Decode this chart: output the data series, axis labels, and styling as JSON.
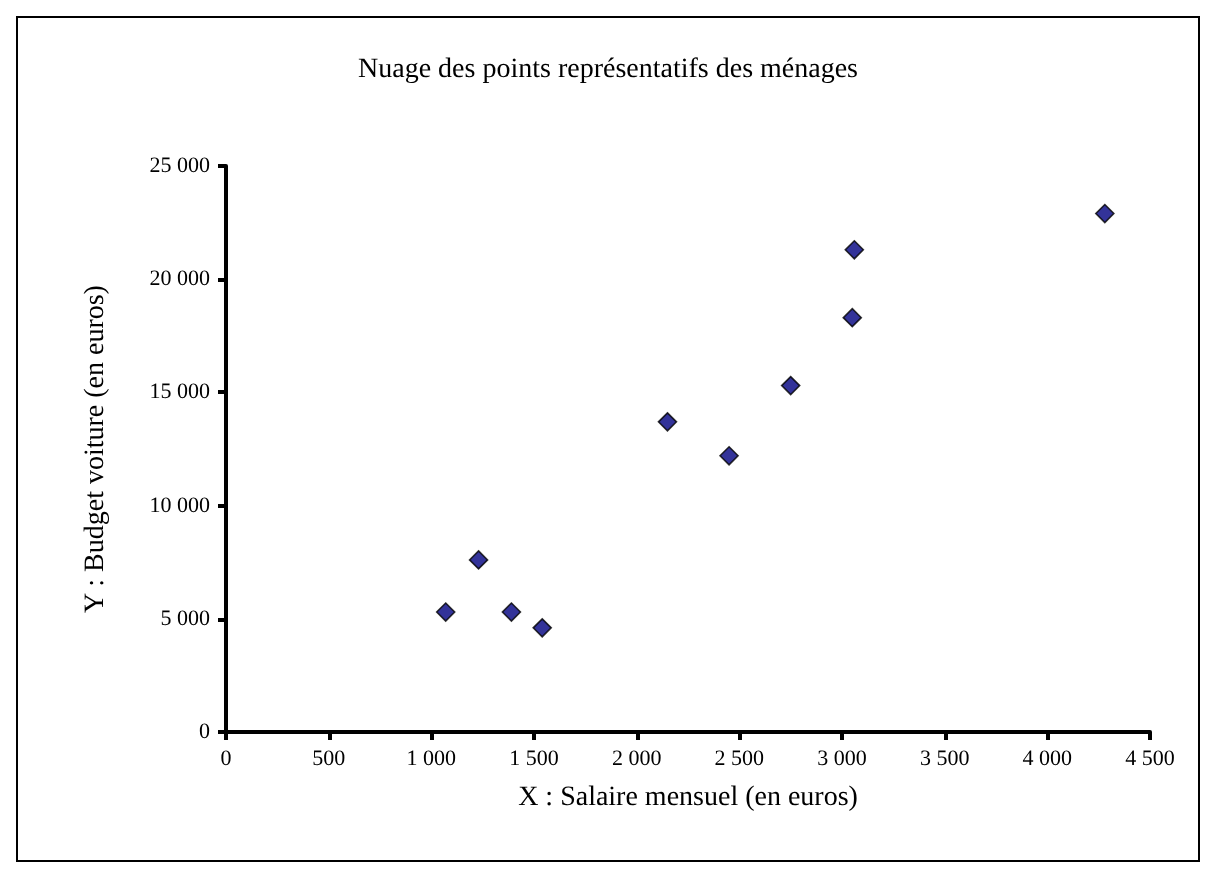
{
  "chart_data": {
    "type": "scatter",
    "title": "Nuage des points représentatifs des ménages",
    "xlabel": "X : Salaire mensuel (en euros)",
    "ylabel": "Y : Budget voiture (en euros)",
    "x": [
      1070,
      1230,
      1390,
      1540,
      2150,
      2450,
      2750,
      3050,
      3060,
      4280
    ],
    "values": [
      5300,
      7600,
      5300,
      4600,
      13700,
      12200,
      15300,
      18300,
      21300,
      22900
    ],
    "color": "#000080",
    "marker": "diamond",
    "grid": false,
    "xlim": [
      0,
      4500
    ],
    "xticks": [
      0,
      500,
      {
        "value": 1000,
        "label": "1 000"
      },
      {
        "value": 1500,
        "label": "1 500"
      },
      {
        "value": 2000,
        "label": "2 000"
      },
      {
        "value": 2500,
        "label": "2 500"
      },
      {
        "value": 3000,
        "label": "3 000"
      },
      {
        "value": 3500,
        "label": "3 500"
      },
      {
        "value": 4000,
        "label": "4 000"
      },
      {
        "value": 4500,
        "label": "4 500"
      }
    ],
    "ylim": [
      0,
      25000
    ],
    "yticks": [
      0,
      {
        "value": 5000,
        "label": "5 000"
      },
      {
        "value": 10000,
        "label": "10 000"
      },
      {
        "value": 15000,
        "label": "15 000"
      },
      {
        "value": 20000,
        "label": "20 000"
      },
      {
        "value": 25000,
        "label": "25 000"
      }
    ]
  }
}
